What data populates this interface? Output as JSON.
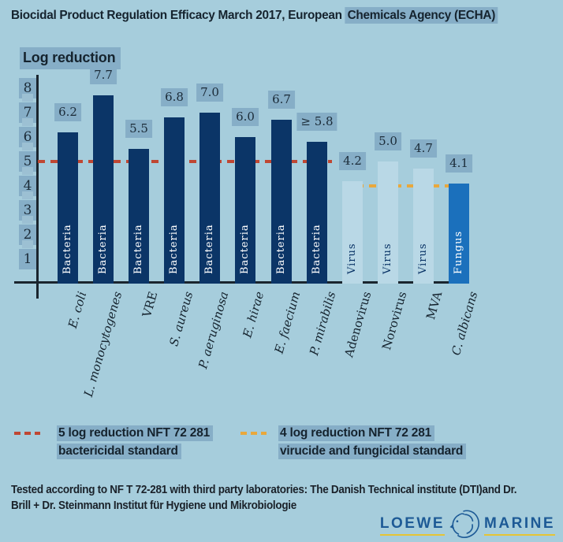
{
  "title": {
    "prefix": "Biocidal Product Regulation Efficacy March 2017, European ",
    "highlight": "Chemicals Agency (ECHA)"
  },
  "chart_data": {
    "type": "bar",
    "title": "Log reduction",
    "ylabel": "Log reduction",
    "ylim": [
      0,
      8.5
    ],
    "yticks": [
      8,
      7,
      6,
      5,
      4,
      3,
      2,
      1
    ],
    "categories": [
      "E. coli",
      "L. monocytogenes",
      "VRE",
      "S. aureus",
      "P. aeruginosa",
      "E. hirae",
      "E. faecium",
      "P. mirabilis",
      "Adenovirus",
      "Norovirus",
      "MVA",
      "C. albicans"
    ],
    "values": [
      6.2,
      7.7,
      5.5,
      6.8,
      7.0,
      6.0,
      6.7,
      5.8,
      4.2,
      5.0,
      4.7,
      4.1
    ],
    "value_labels": [
      "6.2",
      "7.7",
      "5.5",
      "6.8",
      "7.0",
      "6.0",
      "6.7",
      "≥ 5.8",
      "4.2",
      "5.0",
      "4.7",
      "4.1"
    ],
    "groups": [
      "Bacteria",
      "Bacteria",
      "Bacteria",
      "Bacteria",
      "Bacteria",
      "Bacteria",
      "Bacteria",
      "Bacteria",
      "Virus",
      "Virus",
      "Virus",
      "Fungus"
    ],
    "italic_category": [
      true,
      true,
      false,
      true,
      true,
      true,
      true,
      true,
      false,
      false,
      false,
      true
    ],
    "colors": {
      "Bacteria": "#0b3567",
      "Virus": "#b9d8e6",
      "Fungus": "#1b70bc"
    },
    "thresholds": [
      {
        "value": 5,
        "color": "#bf4733",
        "span": "bacteria",
        "label": "5 log reduction NFT 72 281 bactericidal standard"
      },
      {
        "value": 4,
        "color": "#e9a83c",
        "span": "virus-fungus",
        "label": "4 log reduction NFT 72 281 virucide and fungicidal standard"
      }
    ],
    "grid": false,
    "legend_position": "bottom"
  },
  "legend": {
    "items": [
      {
        "color": "#bf4733",
        "line1": "5 log reduction NFT 72 281",
        "line2": "bactericidal standard"
      },
      {
        "color": "#e9a83c",
        "line1": "4 log reduction NFT 72 281",
        "line2": "virucide and fungicidal standard"
      }
    ]
  },
  "footer": {
    "lines": [
      "Tested according to NF T 72-281 with third party laboratories: The Danish Technical institute (DTI)and Dr.",
      "Brill + Dr. Steinmann Institut für Hygiene und Mikrobiologie"
    ]
  },
  "logo": {
    "word1": "LOEWE",
    "word2": "MARINE",
    "icon": "lion-icon",
    "navy": "#1d5a96",
    "yellow": "#e5c435"
  },
  "colors": {
    "background": "#a6cddc",
    "highlight": "#86aec7",
    "highlight_light": "#9cc0d3",
    "axis": "#1a252e",
    "text_dark": "#15232e"
  }
}
